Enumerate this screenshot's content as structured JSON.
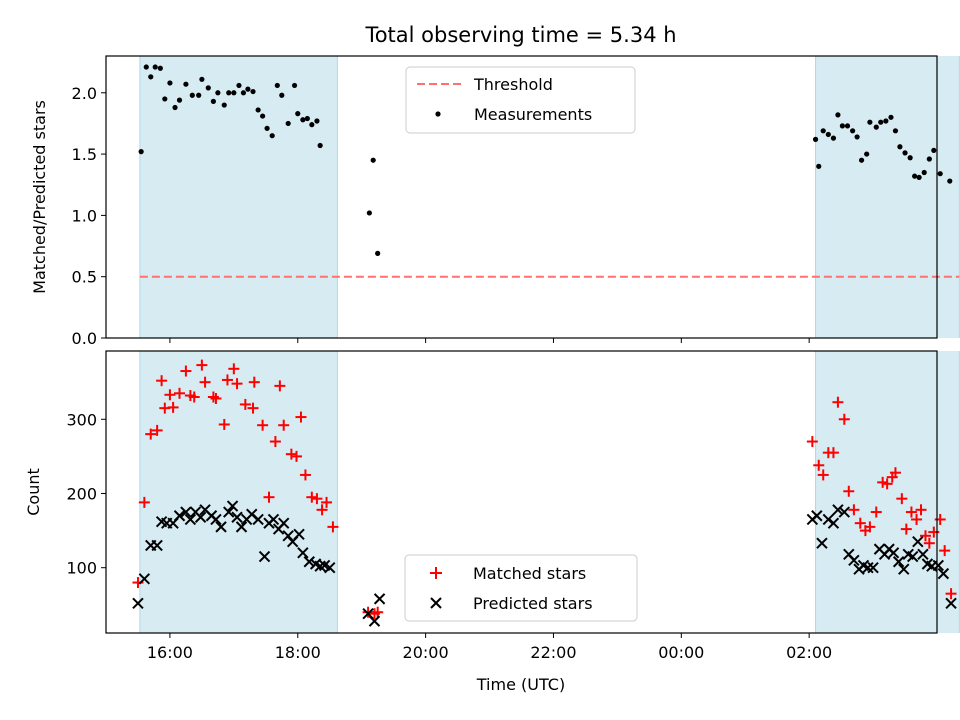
{
  "chart_data": [
    {
      "type": "scatter",
      "title": "Total observing time = 5.34 h",
      "ylabel": "Matched/Predicted stars",
      "xlabel": "",
      "ylim": [
        0,
        2.3
      ],
      "x_range_hours": [
        15.0,
        28.0
      ],
      "yticks": [
        "0.0",
        "0.5",
        "1.0",
        "1.5",
        "2.0"
      ],
      "ytick_values": [
        0,
        0.5,
        1.0,
        1.5,
        2.0
      ],
      "shaded_intervals": [
        [
          15.53,
          18.62
        ],
        [
          26.1,
          28.35
        ]
      ],
      "shade_color": "#add8e6",
      "threshold": {
        "name": "Threshold",
        "value": 0.5,
        "x_range": [
          15.53,
          28.35
        ],
        "color": "#ff7070"
      },
      "legend_position": "upper center",
      "series": [
        {
          "name": "Measurements",
          "color": "#000000",
          "points": [
            [
              15.55,
              1.52
            ],
            [
              15.63,
              2.21
            ],
            [
              15.7,
              2.13
            ],
            [
              15.77,
              2.21
            ],
            [
              15.85,
              2.2
            ],
            [
              15.92,
              1.95
            ],
            [
              16.0,
              2.08
            ],
            [
              16.08,
              1.88
            ],
            [
              16.15,
              1.94
            ],
            [
              16.25,
              2.07
            ],
            [
              16.35,
              1.98
            ],
            [
              16.45,
              1.98
            ],
            [
              16.5,
              2.11
            ],
            [
              16.6,
              2.04
            ],
            [
              16.68,
              1.93
            ],
            [
              16.75,
              2.0
            ],
            [
              16.85,
              1.9
            ],
            [
              16.92,
              2.0
            ],
            [
              17.0,
              2.0
            ],
            [
              17.08,
              2.06
            ],
            [
              17.15,
              2.0
            ],
            [
              17.22,
              2.03
            ],
            [
              17.3,
              2.01
            ],
            [
              17.38,
              1.86
            ],
            [
              17.45,
              1.81
            ],
            [
              17.52,
              1.71
            ],
            [
              17.6,
              1.65
            ],
            [
              17.68,
              2.06
            ],
            [
              17.75,
              1.98
            ],
            [
              17.85,
              1.75
            ],
            [
              17.95,
              2.06
            ],
            [
              18.0,
              1.83
            ],
            [
              18.08,
              1.78
            ],
            [
              18.15,
              1.79
            ],
            [
              18.22,
              1.74
            ],
            [
              18.3,
              1.77
            ],
            [
              18.35,
              1.57
            ],
            [
              19.12,
              1.02
            ],
            [
              19.18,
              1.45
            ],
            [
              19.25,
              0.69
            ],
            [
              26.1,
              1.62
            ],
            [
              26.15,
              1.4
            ],
            [
              26.22,
              1.69
            ],
            [
              26.3,
              1.66
            ],
            [
              26.38,
              1.63
            ],
            [
              26.45,
              1.82
            ],
            [
              26.52,
              1.73
            ],
            [
              26.6,
              1.73
            ],
            [
              26.68,
              1.69
            ],
            [
              26.75,
              1.64
            ],
            [
              26.82,
              1.45
            ],
            [
              26.9,
              1.5
            ],
            [
              26.95,
              1.76
            ],
            [
              27.05,
              1.72
            ],
            [
              27.12,
              1.76
            ],
            [
              27.2,
              1.77
            ],
            [
              27.28,
              1.8
            ],
            [
              27.35,
              1.69
            ],
            [
              27.42,
              1.56
            ],
            [
              27.5,
              1.51
            ],
            [
              27.58,
              1.47
            ],
            [
              27.65,
              1.32
            ],
            [
              27.72,
              1.31
            ],
            [
              27.8,
              1.35
            ],
            [
              27.88,
              1.46
            ],
            [
              27.95,
              1.53
            ],
            [
              28.05,
              1.34
            ],
            [
              28.2,
              1.28
            ]
          ]
        }
      ]
    },
    {
      "type": "scatter",
      "title": "",
      "ylabel": "Count",
      "xlabel": "Time (UTC)",
      "ylim": [
        12,
        392
      ],
      "x_range_hours": [
        15.0,
        28.0
      ],
      "xticks": [
        "16:00",
        "18:00",
        "20:00",
        "22:00",
        "00:00",
        "02:00"
      ],
      "xtick_values": [
        16,
        18,
        20,
        22,
        24,
        26
      ],
      "yticks": [
        "100",
        "200",
        "300"
      ],
      "ytick_values": [
        100,
        200,
        300
      ],
      "shaded_intervals": [
        [
          15.53,
          18.62
        ],
        [
          26.1,
          28.35
        ]
      ],
      "shade_color": "#add8e6",
      "legend_position": "lower center",
      "series": [
        {
          "name": "Matched stars",
          "color": "#ff0000",
          "marker": "+",
          "points": [
            [
              15.5,
              80
            ],
            [
              15.6,
              188
            ],
            [
              15.7,
              280
            ],
            [
              15.8,
              285
            ],
            [
              15.87,
              352
            ],
            [
              15.92,
              315
            ],
            [
              16.0,
              333
            ],
            [
              16.05,
              316
            ],
            [
              16.15,
              335
            ],
            [
              16.25,
              365
            ],
            [
              16.32,
              332
            ],
            [
              16.38,
              330
            ],
            [
              16.5,
              373
            ],
            [
              16.55,
              350
            ],
            [
              16.68,
              330
            ],
            [
              16.72,
              328
            ],
            [
              16.85,
              293
            ],
            [
              16.9,
              353
            ],
            [
              17.0,
              368
            ],
            [
              17.05,
              348
            ],
            [
              17.18,
              320
            ],
            [
              17.3,
              315
            ],
            [
              17.32,
              350
            ],
            [
              17.45,
              292
            ],
            [
              17.55,
              195
            ],
            [
              17.65,
              270
            ],
            [
              17.72,
              345
            ],
            [
              17.78,
              292
            ],
            [
              17.9,
              253
            ],
            [
              17.98,
              250
            ],
            [
              18.05,
              303
            ],
            [
              18.12,
              225
            ],
            [
              18.22,
              195
            ],
            [
              18.3,
              193
            ],
            [
              18.38,
              178
            ],
            [
              18.45,
              188
            ],
            [
              18.55,
              155
            ],
            [
              19.1,
              40
            ],
            [
              19.2,
              38
            ],
            [
              19.25,
              40
            ],
            [
              26.05,
              270
            ],
            [
              26.15,
              238
            ],
            [
              26.22,
              225
            ],
            [
              26.3,
              255
            ],
            [
              26.38,
              255
            ],
            [
              26.45,
              323
            ],
            [
              26.55,
              300
            ],
            [
              26.62,
              203
            ],
            [
              26.7,
              178
            ],
            [
              26.8,
              160
            ],
            [
              26.88,
              150
            ],
            [
              26.95,
              155
            ],
            [
              27.05,
              175
            ],
            [
              27.15,
              215
            ],
            [
              27.22,
              213
            ],
            [
              27.3,
              222
            ],
            [
              27.35,
              228
            ],
            [
              27.45,
              193
            ],
            [
              27.52,
              152
            ],
            [
              27.6,
              175
            ],
            [
              27.68,
              165
            ],
            [
              27.75,
              178
            ],
            [
              27.82,
              143
            ],
            [
              27.88,
              133
            ],
            [
              27.95,
              148
            ],
            [
              28.05,
              165
            ],
            [
              28.12,
              123
            ],
            [
              28.22,
              65
            ]
          ]
        },
        {
          "name": "Predicted stars",
          "color": "#000000",
          "marker": "x",
          "points": [
            [
              15.5,
              52
            ],
            [
              15.6,
              85
            ],
            [
              15.7,
              130
            ],
            [
              15.8,
              130
            ],
            [
              15.87,
              162
            ],
            [
              15.95,
              160
            ],
            [
              16.05,
              160
            ],
            [
              16.15,
              170
            ],
            [
              16.25,
              175
            ],
            [
              16.32,
              165
            ],
            [
              16.4,
              175
            ],
            [
              16.48,
              168
            ],
            [
              16.55,
              178
            ],
            [
              16.65,
              170
            ],
            [
              16.72,
              165
            ],
            [
              16.8,
              155
            ],
            [
              16.92,
              175
            ],
            [
              16.98,
              183
            ],
            [
              17.05,
              168
            ],
            [
              17.12,
              155
            ],
            [
              17.2,
              165
            ],
            [
              17.28,
              172
            ],
            [
              17.38,
              165
            ],
            [
              17.48,
              115
            ],
            [
              17.55,
              160
            ],
            [
              17.62,
              165
            ],
            [
              17.7,
              152
            ],
            [
              17.78,
              160
            ],
            [
              17.85,
              143
            ],
            [
              17.92,
              135
            ],
            [
              18.02,
              145
            ],
            [
              18.08,
              120
            ],
            [
              18.18,
              108
            ],
            [
              18.28,
              105
            ],
            [
              18.35,
              102
            ],
            [
              18.42,
              103
            ],
            [
              18.5,
              100
            ],
            [
              19.1,
              38
            ],
            [
              19.2,
              28
            ],
            [
              19.28,
              58
            ],
            [
              26.05,
              165
            ],
            [
              26.12,
              170
            ],
            [
              26.2,
              133
            ],
            [
              26.3,
              165
            ],
            [
              26.38,
              160
            ],
            [
              26.45,
              178
            ],
            [
              26.55,
              175
            ],
            [
              26.62,
              118
            ],
            [
              26.7,
              110
            ],
            [
              26.78,
              98
            ],
            [
              26.85,
              103
            ],
            [
              26.92,
              100
            ],
            [
              27.0,
              100
            ],
            [
              27.1,
              125
            ],
            [
              27.18,
              118
            ],
            [
              27.25,
              125
            ],
            [
              27.32,
              120
            ],
            [
              27.4,
              108
            ],
            [
              27.48,
              98
            ],
            [
              27.55,
              118
            ],
            [
              27.62,
              115
            ],
            [
              27.7,
              135
            ],
            [
              27.78,
              118
            ],
            [
              27.85,
              105
            ],
            [
              27.92,
              102
            ],
            [
              28.02,
              103
            ],
            [
              28.1,
              92
            ],
            [
              28.22,
              52
            ]
          ]
        }
      ]
    }
  ]
}
